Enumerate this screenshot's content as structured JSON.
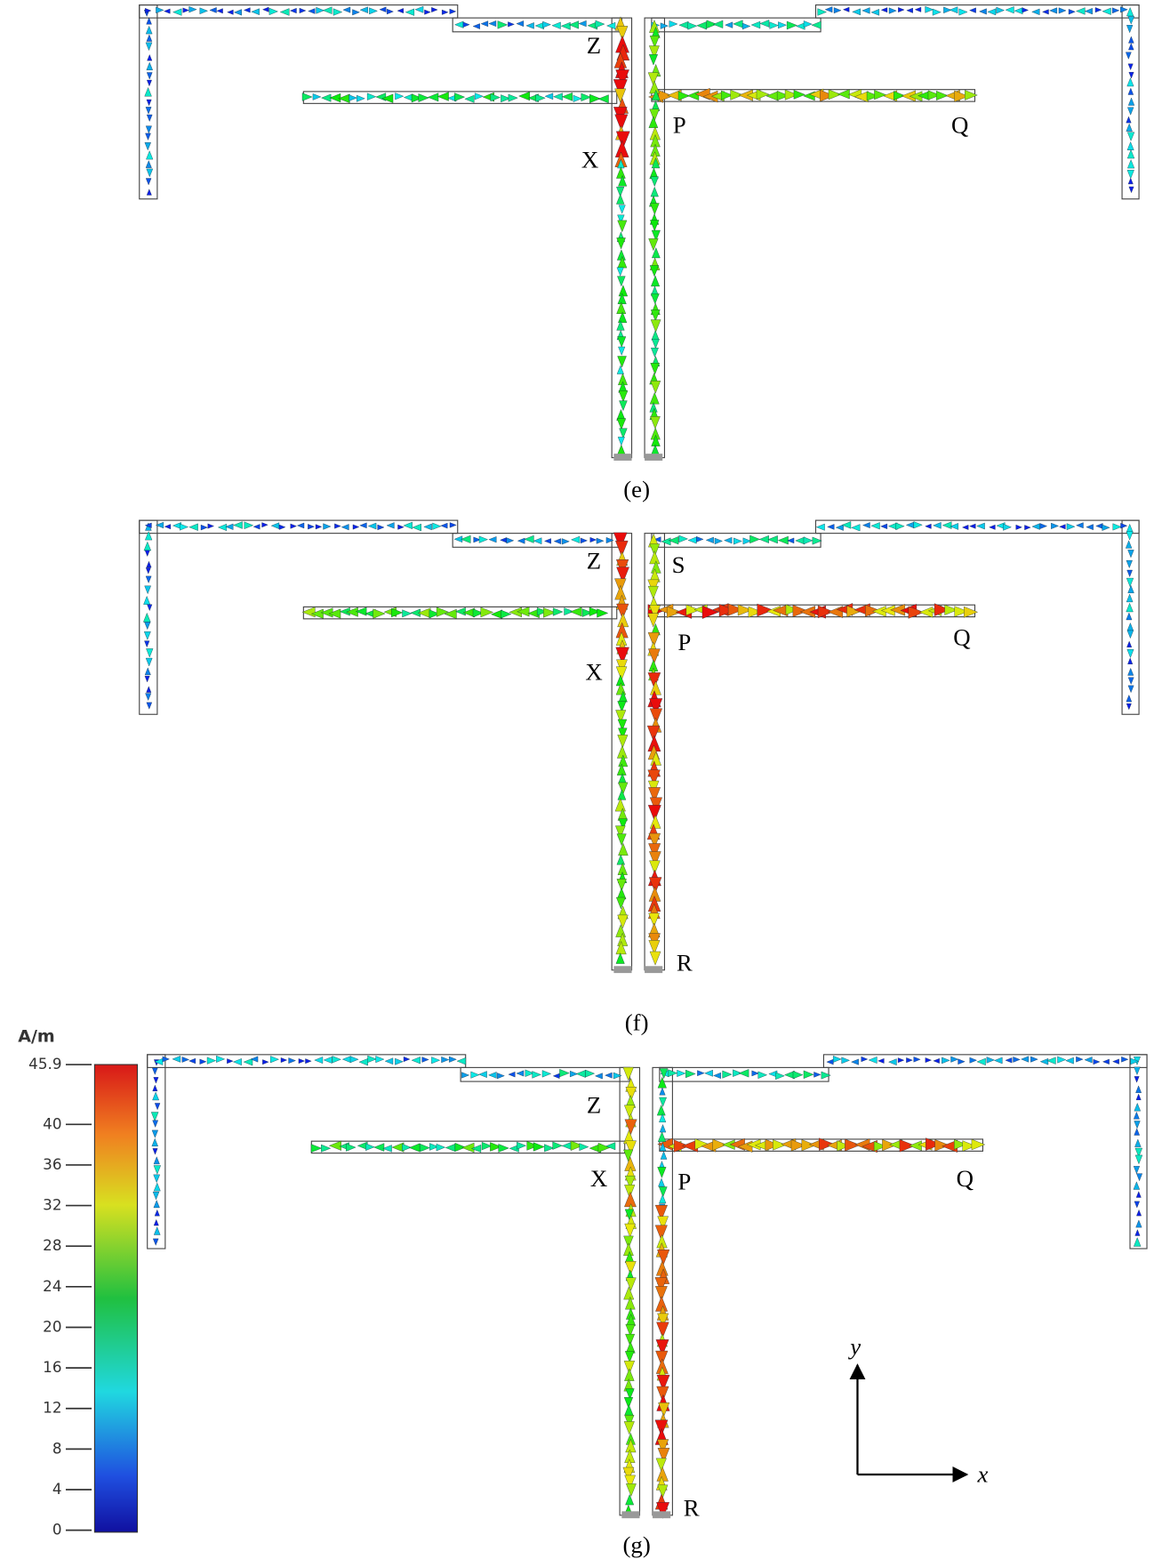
{
  "panels": [
    {
      "caption": "(e)",
      "labels": [
        "Z",
        "X",
        "P",
        "Q"
      ]
    },
    {
      "caption": "(f)",
      "labels": [
        "Z",
        "S",
        "X",
        "P",
        "Q",
        "R"
      ]
    },
    {
      "caption": "(g)",
      "labels": [
        "Z",
        "X",
        "P",
        "Q",
        "R"
      ]
    }
  ],
  "colorbar": {
    "unit": "A/m",
    "range": [
      0,
      45.9
    ],
    "ticks": [
      45.9,
      40,
      36,
      32,
      28,
      24,
      20,
      16,
      12,
      8,
      4,
      0
    ]
  },
  "axes": {
    "x": "x",
    "y": "y"
  }
}
